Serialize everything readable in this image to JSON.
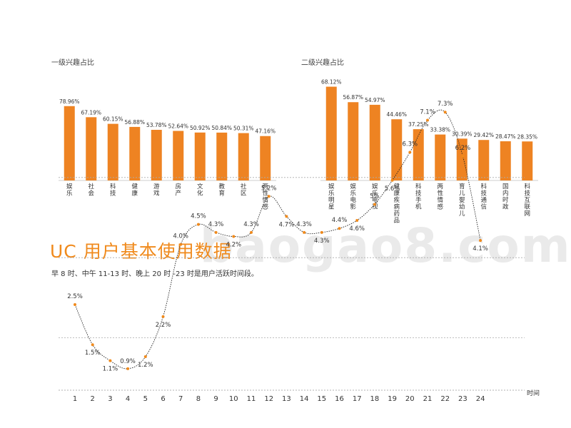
{
  "page": {
    "section_title": "UC 用户基本使用数据",
    "note": "早 8 时、中午 11-13 时、晚上 20 时 -23 时是用户活跃时间段。",
    "watermark": "baogao8.com",
    "colors": {
      "accent": "#f08a1c",
      "bar": "#ee8322",
      "line": "#222222",
      "grid": "#aaaaaa"
    }
  },
  "chart_data": [
    {
      "type": "bar",
      "title": "一级兴趣占比",
      "categories": [
        "娱乐",
        "社会",
        "科技",
        "健康",
        "游戏",
        "房产",
        "文化",
        "教育",
        "社区",
        "两性情感"
      ],
      "values": [
        78.96,
        67.19,
        60.15,
        56.88,
        53.78,
        52.64,
        50.92,
        50.84,
        50.31,
        47.16
      ],
      "value_labels": [
        "78.96%",
        "67.19%",
        "60.15%",
        "56.88%",
        "53.78%",
        "52.64%",
        "50.92%",
        "50.84%",
        "50.31%",
        "47.16%"
      ],
      "ylim": [
        0,
        100
      ]
    },
    {
      "type": "bar",
      "title": "二级兴趣占比",
      "categories": [
        "娱乐明星",
        "娱乐电影",
        "娱乐电视",
        "健康疾病药品",
        "科技手机",
        "两性情感",
        "育儿婴幼儿",
        "科技通信",
        "国内时政",
        "科技互联网"
      ],
      "values": [
        68.12,
        56.87,
        54.97,
        44.46,
        37.25,
        33.38,
        30.39,
        29.42,
        28.47,
        28.35
      ],
      "value_labels": [
        "68.12%",
        "56.87%",
        "54.97%",
        "44.46%",
        "37.25%",
        "33.38%",
        "30.39%",
        "29.42%",
        "28.47%",
        "28.35%"
      ],
      "ylim": [
        0,
        100
      ]
    },
    {
      "type": "line",
      "x": [
        1,
        2,
        3,
        4,
        5,
        6,
        7,
        8,
        9,
        10,
        11,
        12,
        13,
        14,
        15,
        16,
        17,
        18,
        19,
        20,
        21,
        22,
        23,
        24
      ],
      "values": [
        2.5,
        1.5,
        1.1,
        0.9,
        1.2,
        2.2,
        4.0,
        4.5,
        4.3,
        4.2,
        4.3,
        5.2,
        4.7,
        4.3,
        4.3,
        4.4,
        4.6,
        5.0,
        5.6,
        6.3,
        7.1,
        7.3,
        6.2,
        4.1
      ],
      "value_labels": [
        "2.5%",
        "1.5%",
        "1.1%",
        "0.9%",
        "1.2%",
        "2.2%",
        "4.0%",
        "4.5%",
        "4.3%",
        "4.2%",
        "4.3%",
        "5.2%",
        "4.7%",
        "4.3%",
        "4.3%",
        "4.4%",
        "4.6%",
        "5%",
        "5.6%",
        "6.3%",
        "7.1%",
        "7.3%",
        "6.2%",
        "4.1%"
      ],
      "xlabel": "时间",
      "ylim": [
        0,
        8
      ],
      "grid": true
    }
  ]
}
